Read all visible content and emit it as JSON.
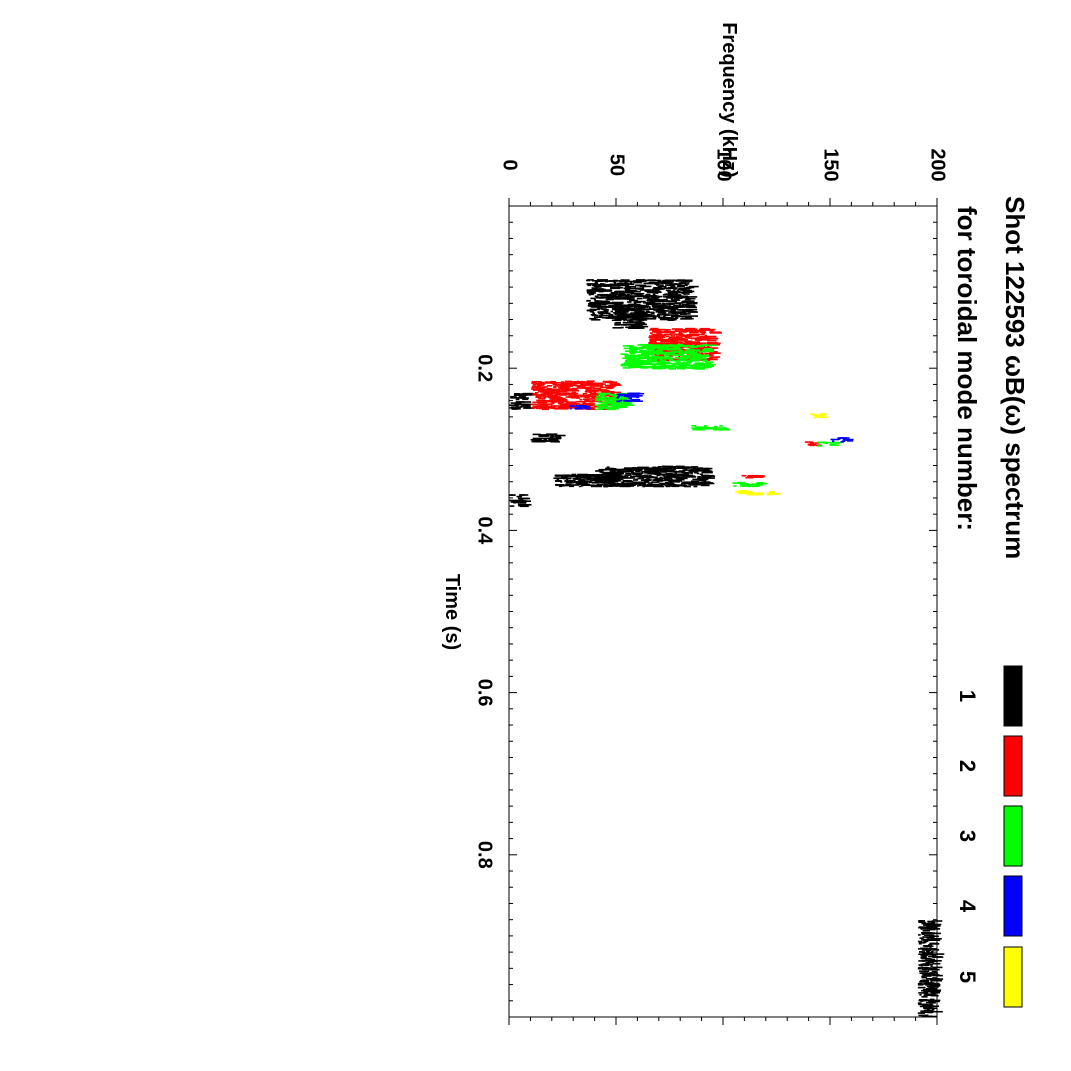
{
  "chart_data": {
    "type": "heatmap",
    "orientation": "rotated 90 degrees clockwise",
    "title_line1": "Shot 122593 ωB(ω) spectrum",
    "title_line2": "for toroidal mode number:",
    "xlabel": "Time (s)",
    "ylabel": "Frequency (kHz)",
    "xlim": [
      0.0,
      1.0
    ],
    "ylim": [
      0,
      200
    ],
    "x_ticks": [
      0.2,
      0.4,
      0.6,
      0.8
    ],
    "x_tick_labels": [
      "0.2",
      "0.4",
      "0.6",
      "0.8"
    ],
    "y_ticks": [
      0,
      50,
      100,
      150,
      200
    ],
    "y_tick_labels": [
      "0",
      "50",
      "100",
      "150",
      "200"
    ],
    "legend": [
      {
        "label": "1",
        "color": "#000000"
      },
      {
        "label": "2",
        "color": "#ff0000"
      },
      {
        "label": "3",
        "color": "#00ff00"
      },
      {
        "label": "4",
        "color": "#0000ff"
      },
      {
        "label": "5",
        "color": "#ffff00"
      }
    ],
    "series": [
      {
        "name": "1",
        "color": "#000000",
        "regions": [
          {
            "t": [
              0.09,
              0.14
            ],
            "f": [
              36,
              84
            ]
          },
          {
            "t": [
              0.12,
              0.15
            ],
            "f": [
              48,
              62
            ]
          },
          {
            "t": [
              0.23,
              0.25
            ],
            "f": [
              0,
              7
            ]
          },
          {
            "t": [
              0.28,
              0.29
            ],
            "f": [
              10,
              22
            ]
          },
          {
            "t": [
              0.32,
              0.345
            ],
            "f": [
              40,
              92
            ]
          },
          {
            "t": [
              0.33,
              0.345
            ],
            "f": [
              20,
              50
            ]
          },
          {
            "t": [
              0.355,
              0.37
            ],
            "f": [
              0,
              6
            ]
          },
          {
            "t": [
              0.88,
              1.0
            ],
            "f": [
              191,
              198
            ]
          }
        ]
      },
      {
        "name": "2",
        "color": "#ff0000",
        "regions": [
          {
            "t": [
              0.15,
              0.19
            ],
            "f": [
              65,
              94
            ]
          },
          {
            "t": [
              0.215,
              0.25
            ],
            "f": [
              10,
              48
            ]
          },
          {
            "t": [
              0.29,
              0.295
            ],
            "f": [
              138,
              145
            ]
          },
          {
            "t": [
              0.33,
              0.335
            ],
            "f": [
              108,
              116
            ]
          }
        ]
      },
      {
        "name": "3",
        "color": "#00ff00",
        "regions": [
          {
            "t": [
              0.17,
              0.2
            ],
            "f": [
              52,
              92
            ]
          },
          {
            "t": [
              0.23,
              0.25
            ],
            "f": [
              40,
              54
            ]
          },
          {
            "t": [
              0.27,
              0.275
            ],
            "f": [
              85,
              100
            ]
          },
          {
            "t": [
              0.29,
              0.295
            ],
            "f": [
              144,
              152
            ]
          },
          {
            "t": [
              0.34,
              0.345
            ],
            "f": [
              104,
              116
            ]
          }
        ]
      },
      {
        "name": "4",
        "color": "#0000ff",
        "regions": [
          {
            "t": [
              0.23,
              0.24
            ],
            "f": [
              50,
              60
            ]
          },
          {
            "t": [
              0.245,
              0.25
            ],
            "f": [
              28,
              36
            ]
          },
          {
            "t": [
              0.285,
              0.29
            ],
            "f": [
              150,
              158
            ]
          }
        ]
      },
      {
        "name": "5",
        "color": "#ffff00",
        "regions": [
          {
            "t": [
              0.35,
              0.355
            ],
            "f": [
              105,
              122
            ]
          },
          {
            "t": [
              0.255,
              0.26
            ],
            "f": [
              140,
              146
            ]
          }
        ]
      }
    ]
  }
}
